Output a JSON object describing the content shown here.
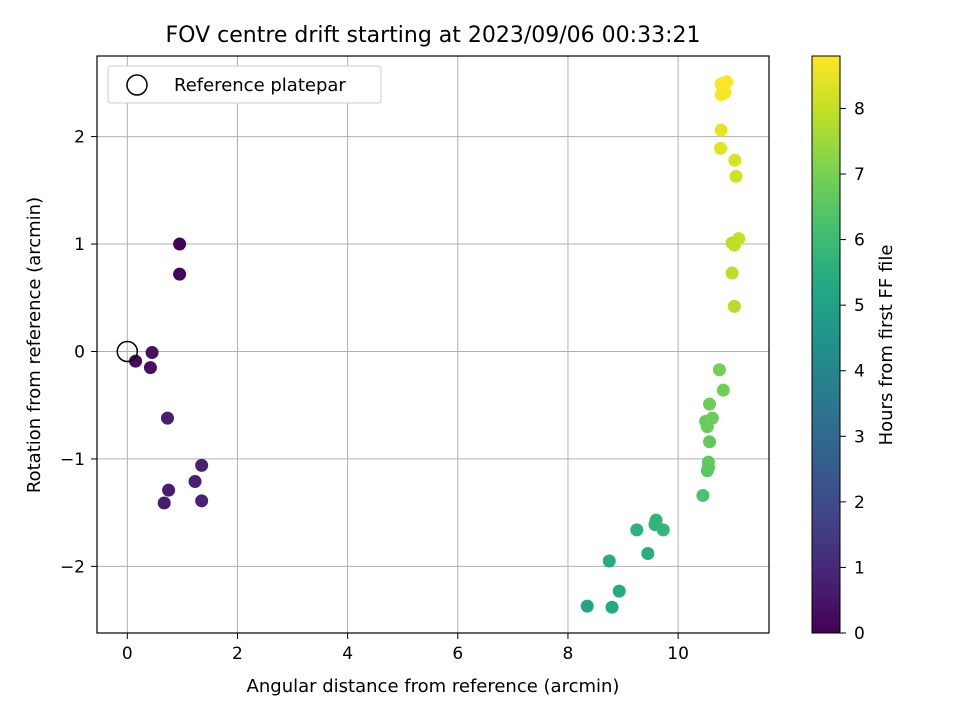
{
  "chart_data": {
    "type": "scatter",
    "title": "FOV centre drift starting at 2023/09/06 00:33:21",
    "xlabel": "Angular distance from reference (arcmin)",
    "ylabel": "Rotation from reference (arcmin)",
    "xlim": [
      -0.55,
      11.65
    ],
    "ylim": [
      -2.62,
      2.75
    ],
    "xticks": [
      0,
      2,
      4,
      6,
      8,
      10
    ],
    "yticks": [
      -2,
      -1,
      0,
      1,
      2
    ],
    "grid": true,
    "legend": {
      "position": "top-left",
      "entries": [
        "Reference platepar"
      ]
    },
    "reference_point": {
      "x": 0,
      "y": 0
    },
    "colorbar": {
      "label": "Hours from first FF file",
      "colormap": "viridis",
      "range": [
        0,
        8.8
      ],
      "ticks": [
        0,
        1,
        2,
        3,
        4,
        5,
        6,
        7,
        8
      ]
    },
    "points": [
      {
        "x": 0.95,
        "y": 1.0,
        "t": 0.1
      },
      {
        "x": 0.95,
        "y": 0.72,
        "t": 0.15
      },
      {
        "x": 0.15,
        "y": -0.09,
        "t": 0.25
      },
      {
        "x": 0.45,
        "y": -0.01,
        "t": 0.4
      },
      {
        "x": 0.42,
        "y": -0.15,
        "t": 0.35
      },
      {
        "x": 0.73,
        "y": -0.62,
        "t": 0.75
      },
      {
        "x": 1.35,
        "y": -1.06,
        "t": 0.85
      },
      {
        "x": 1.23,
        "y": -1.21,
        "t": 0.8
      },
      {
        "x": 0.75,
        "y": -1.29,
        "t": 0.7
      },
      {
        "x": 0.67,
        "y": -1.41,
        "t": 0.65
      },
      {
        "x": 1.35,
        "y": -1.39,
        "t": 0.8
      },
      {
        "x": 8.35,
        "y": -2.37,
        "t": 5.2
      },
      {
        "x": 8.8,
        "y": -2.38,
        "t": 5.3
      },
      {
        "x": 8.93,
        "y": -2.23,
        "t": 5.35
      },
      {
        "x": 8.75,
        "y": -1.95,
        "t": 5.4
      },
      {
        "x": 9.25,
        "y": -1.66,
        "t": 5.6
      },
      {
        "x": 9.45,
        "y": -1.88,
        "t": 5.5
      },
      {
        "x": 9.6,
        "y": -1.57,
        "t": 5.7
      },
      {
        "x": 9.58,
        "y": -1.61,
        "t": 5.75
      },
      {
        "x": 9.73,
        "y": -1.66,
        "t": 5.8
      },
      {
        "x": 10.45,
        "y": -1.34,
        "t": 6.3
      },
      {
        "x": 10.53,
        "y": -1.11,
        "t": 6.5
      },
      {
        "x": 10.55,
        "y": -1.08,
        "t": 6.55
      },
      {
        "x": 10.55,
        "y": -1.03,
        "t": 6.6
      },
      {
        "x": 10.57,
        "y": -0.84,
        "t": 6.65
      },
      {
        "x": 10.5,
        "y": -0.65,
        "t": 6.7
      },
      {
        "x": 10.53,
        "y": -0.7,
        "t": 6.75
      },
      {
        "x": 10.62,
        "y": -0.62,
        "t": 6.8
      },
      {
        "x": 10.57,
        "y": -0.49,
        "t": 6.85
      },
      {
        "x": 10.82,
        "y": -0.36,
        "t": 6.9
      },
      {
        "x": 10.75,
        "y": -0.17,
        "t": 6.95
      },
      {
        "x": 11.02,
        "y": 0.42,
        "t": 7.8
      },
      {
        "x": 10.98,
        "y": 0.73,
        "t": 7.85
      },
      {
        "x": 10.98,
        "y": 1.01,
        "t": 7.9
      },
      {
        "x": 11.02,
        "y": 0.99,
        "t": 7.95
      },
      {
        "x": 11.1,
        "y": 1.05,
        "t": 8.0
      },
      {
        "x": 11.05,
        "y": 1.63,
        "t": 8.2
      },
      {
        "x": 11.03,
        "y": 1.78,
        "t": 8.3
      },
      {
        "x": 10.77,
        "y": 1.89,
        "t": 8.4
      },
      {
        "x": 10.78,
        "y": 2.06,
        "t": 8.5
      },
      {
        "x": 10.78,
        "y": 2.39,
        "t": 8.7
      },
      {
        "x": 10.85,
        "y": 2.41,
        "t": 8.72
      },
      {
        "x": 10.83,
        "y": 2.47,
        "t": 8.75
      },
      {
        "x": 10.78,
        "y": 2.49,
        "t": 8.78
      },
      {
        "x": 10.88,
        "y": 2.51,
        "t": 8.8
      }
    ]
  }
}
